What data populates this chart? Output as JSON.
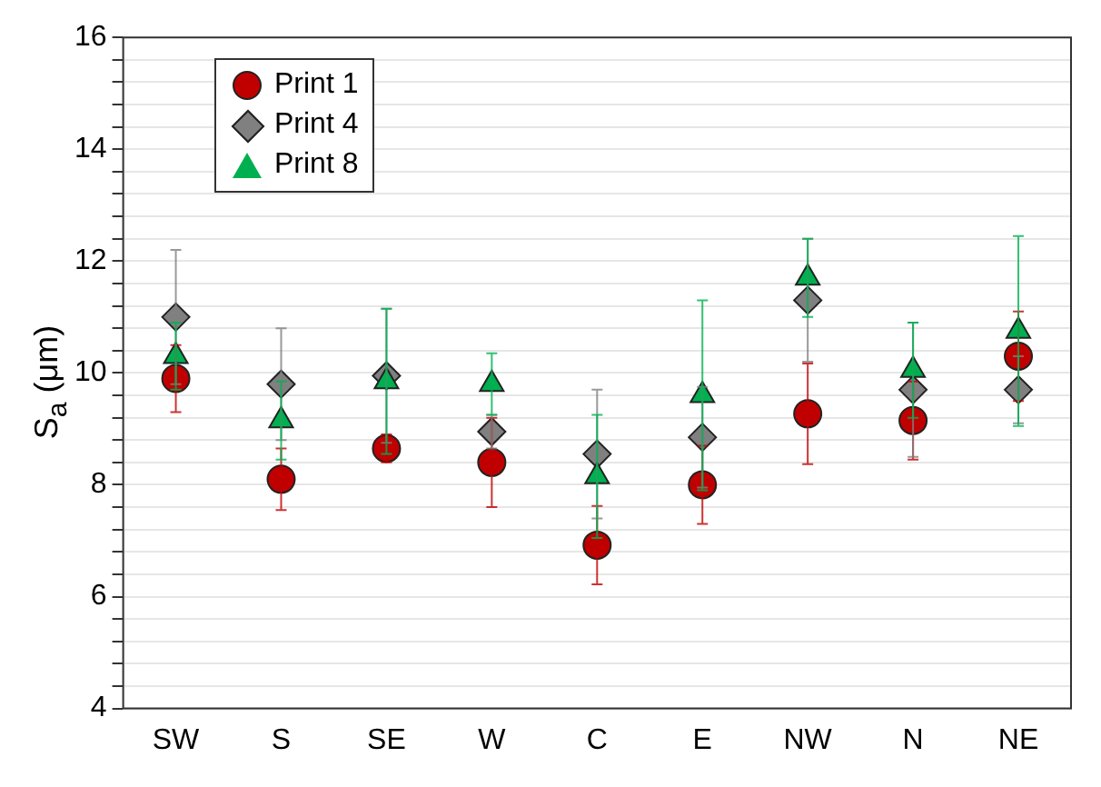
{
  "chart_data": {
    "type": "scatter",
    "ylabel": "S$_{a}$ (μm)",
    "categories": [
      "SW",
      "S",
      "SE",
      "W",
      "C",
      "E",
      "NW",
      "N",
      "NE"
    ],
    "series": [
      {
        "name": "Print 1",
        "color": "#c00000",
        "marker": "circle",
        "values": [
          9.9,
          8.1,
          8.65,
          8.4,
          6.92,
          8.0,
          9.27,
          9.15,
          10.3
        ],
        "errors": [
          0.6,
          0.55,
          0.25,
          0.8,
          0.7,
          0.7,
          0.9,
          0.7,
          0.8
        ]
      },
      {
        "name": "Print 4",
        "color": "#808080",
        "marker": "diamond",
        "values": [
          11.0,
          9.8,
          9.95,
          8.95,
          8.55,
          8.85,
          11.3,
          9.7,
          9.7
        ],
        "errors": [
          1.2,
          1.0,
          1.2,
          0.3,
          1.15,
          0.9,
          1.1,
          1.2,
          0.6
        ]
      },
      {
        "name": "Print 8",
        "color": "#00b050",
        "marker": "triangle",
        "values": [
          10.3,
          9.15,
          9.85,
          9.8,
          8.15,
          9.6,
          11.7,
          10.05,
          10.75
        ],
        "errors": [
          0.6,
          0.7,
          1.3,
          0.55,
          1.1,
          1.7,
          0.7,
          0.85,
          1.7
        ]
      }
    ],
    "ylim": [
      4,
      16
    ],
    "yticks": [
      4,
      {
        "value": 4.4,
        "label": null
      },
      {
        "value": 4.8,
        "label": null
      },
      {
        "value": 5.2,
        "label": null
      },
      {
        "value": 5.6,
        "label": null
      },
      6,
      {
        "value": 6.4,
        "label": null
      },
      {
        "value": 6.8,
        "label": null
      },
      {
        "value": 7.2,
        "label": null
      },
      {
        "value": 7.6,
        "label": null
      },
      8,
      {
        "value": 8.4,
        "label": null
      },
      {
        "value": 8.8,
        "label": null
      },
      {
        "value": 9.2,
        "label": null
      },
      {
        "value": 9.6,
        "label": null
      },
      10,
      {
        "value": 10.4,
        "label": null
      },
      {
        "value": 10.8,
        "label": null
      },
      {
        "value": 11.2,
        "label": null
      },
      {
        "value": 11.6,
        "label": null
      },
      12,
      {
        "value": 12.4,
        "label": null
      },
      {
        "value": 12.8,
        "label": null
      },
      {
        "value": 13.2,
        "label": null
      },
      {
        "value": 13.6,
        "label": null
      },
      14,
      {
        "value": 14.4,
        "label": null
      },
      {
        "value": 14.8,
        "label": null
      },
      {
        "value": 15.2,
        "label": null
      },
      {
        "value": 15.6,
        "label": null
      },
      16
    ],
    "grid": "y",
    "legend": "top left"
  }
}
